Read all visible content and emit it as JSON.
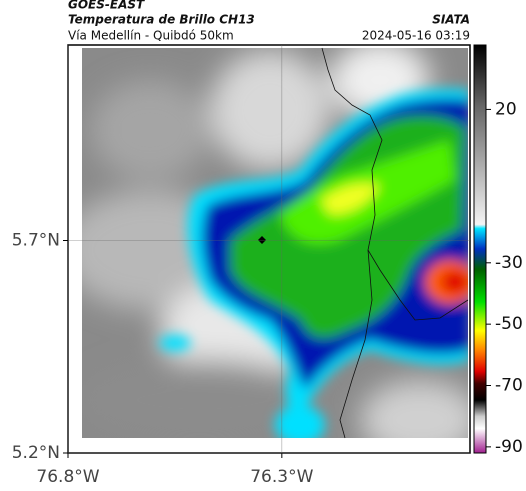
{
  "header": {
    "title": "GOES-EAST",
    "subtitle": "Temperatura de Brillo CH13",
    "source": "SIATA",
    "region": "Vía Medellín - Quibdó 50km",
    "timestamp": "2024-05-16 03:19"
  },
  "map": {
    "lonlim": [
      -76.8,
      -75.86
    ],
    "latlim": [
      5.2,
      6.16
    ],
    "lon_ticks": [
      {
        "value": -76.8,
        "label": "76.8°W"
      },
      {
        "value": -76.3,
        "label": "76.3°W"
      }
    ],
    "lat_ticks": [
      {
        "value": 5.7,
        "label": "5.7°N"
      },
      {
        "value": 5.2,
        "label": "5.2°N"
      }
    ]
  },
  "colorbar": {
    "lim": [
      41,
      -92
    ],
    "ticks": [
      20,
      -30,
      -50,
      -70,
      -90
    ]
  }
}
